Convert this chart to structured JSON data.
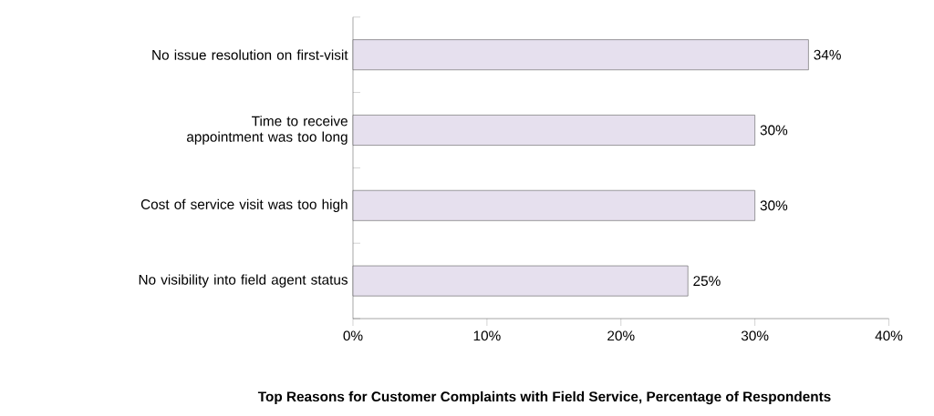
{
  "chart_data": {
    "type": "bar",
    "orientation": "horizontal",
    "title": "Top Reasons for Customer Complaints with Field Service, Percentage of Respondents",
    "categories": [
      "No issue resolution on first-visit",
      "Time to receive appointment was too long",
      "Cost of service visit was too high",
      "No visibility into field agent status"
    ],
    "values": [
      34,
      30,
      30,
      25
    ],
    "value_labels": [
      "34%",
      "30%",
      "30%",
      "25%"
    ],
    "color": "#e6e0ee",
    "xlim": [
      0,
      40
    ],
    "xticks": [
      {
        "value": 0,
        "label": "0%"
      },
      {
        "value": 10,
        "label": "10%"
      },
      {
        "value": 20,
        "label": "20%"
      },
      {
        "value": 30,
        "label": "30%"
      },
      {
        "value": 40,
        "label": "40%"
      }
    ],
    "grid": false
  }
}
